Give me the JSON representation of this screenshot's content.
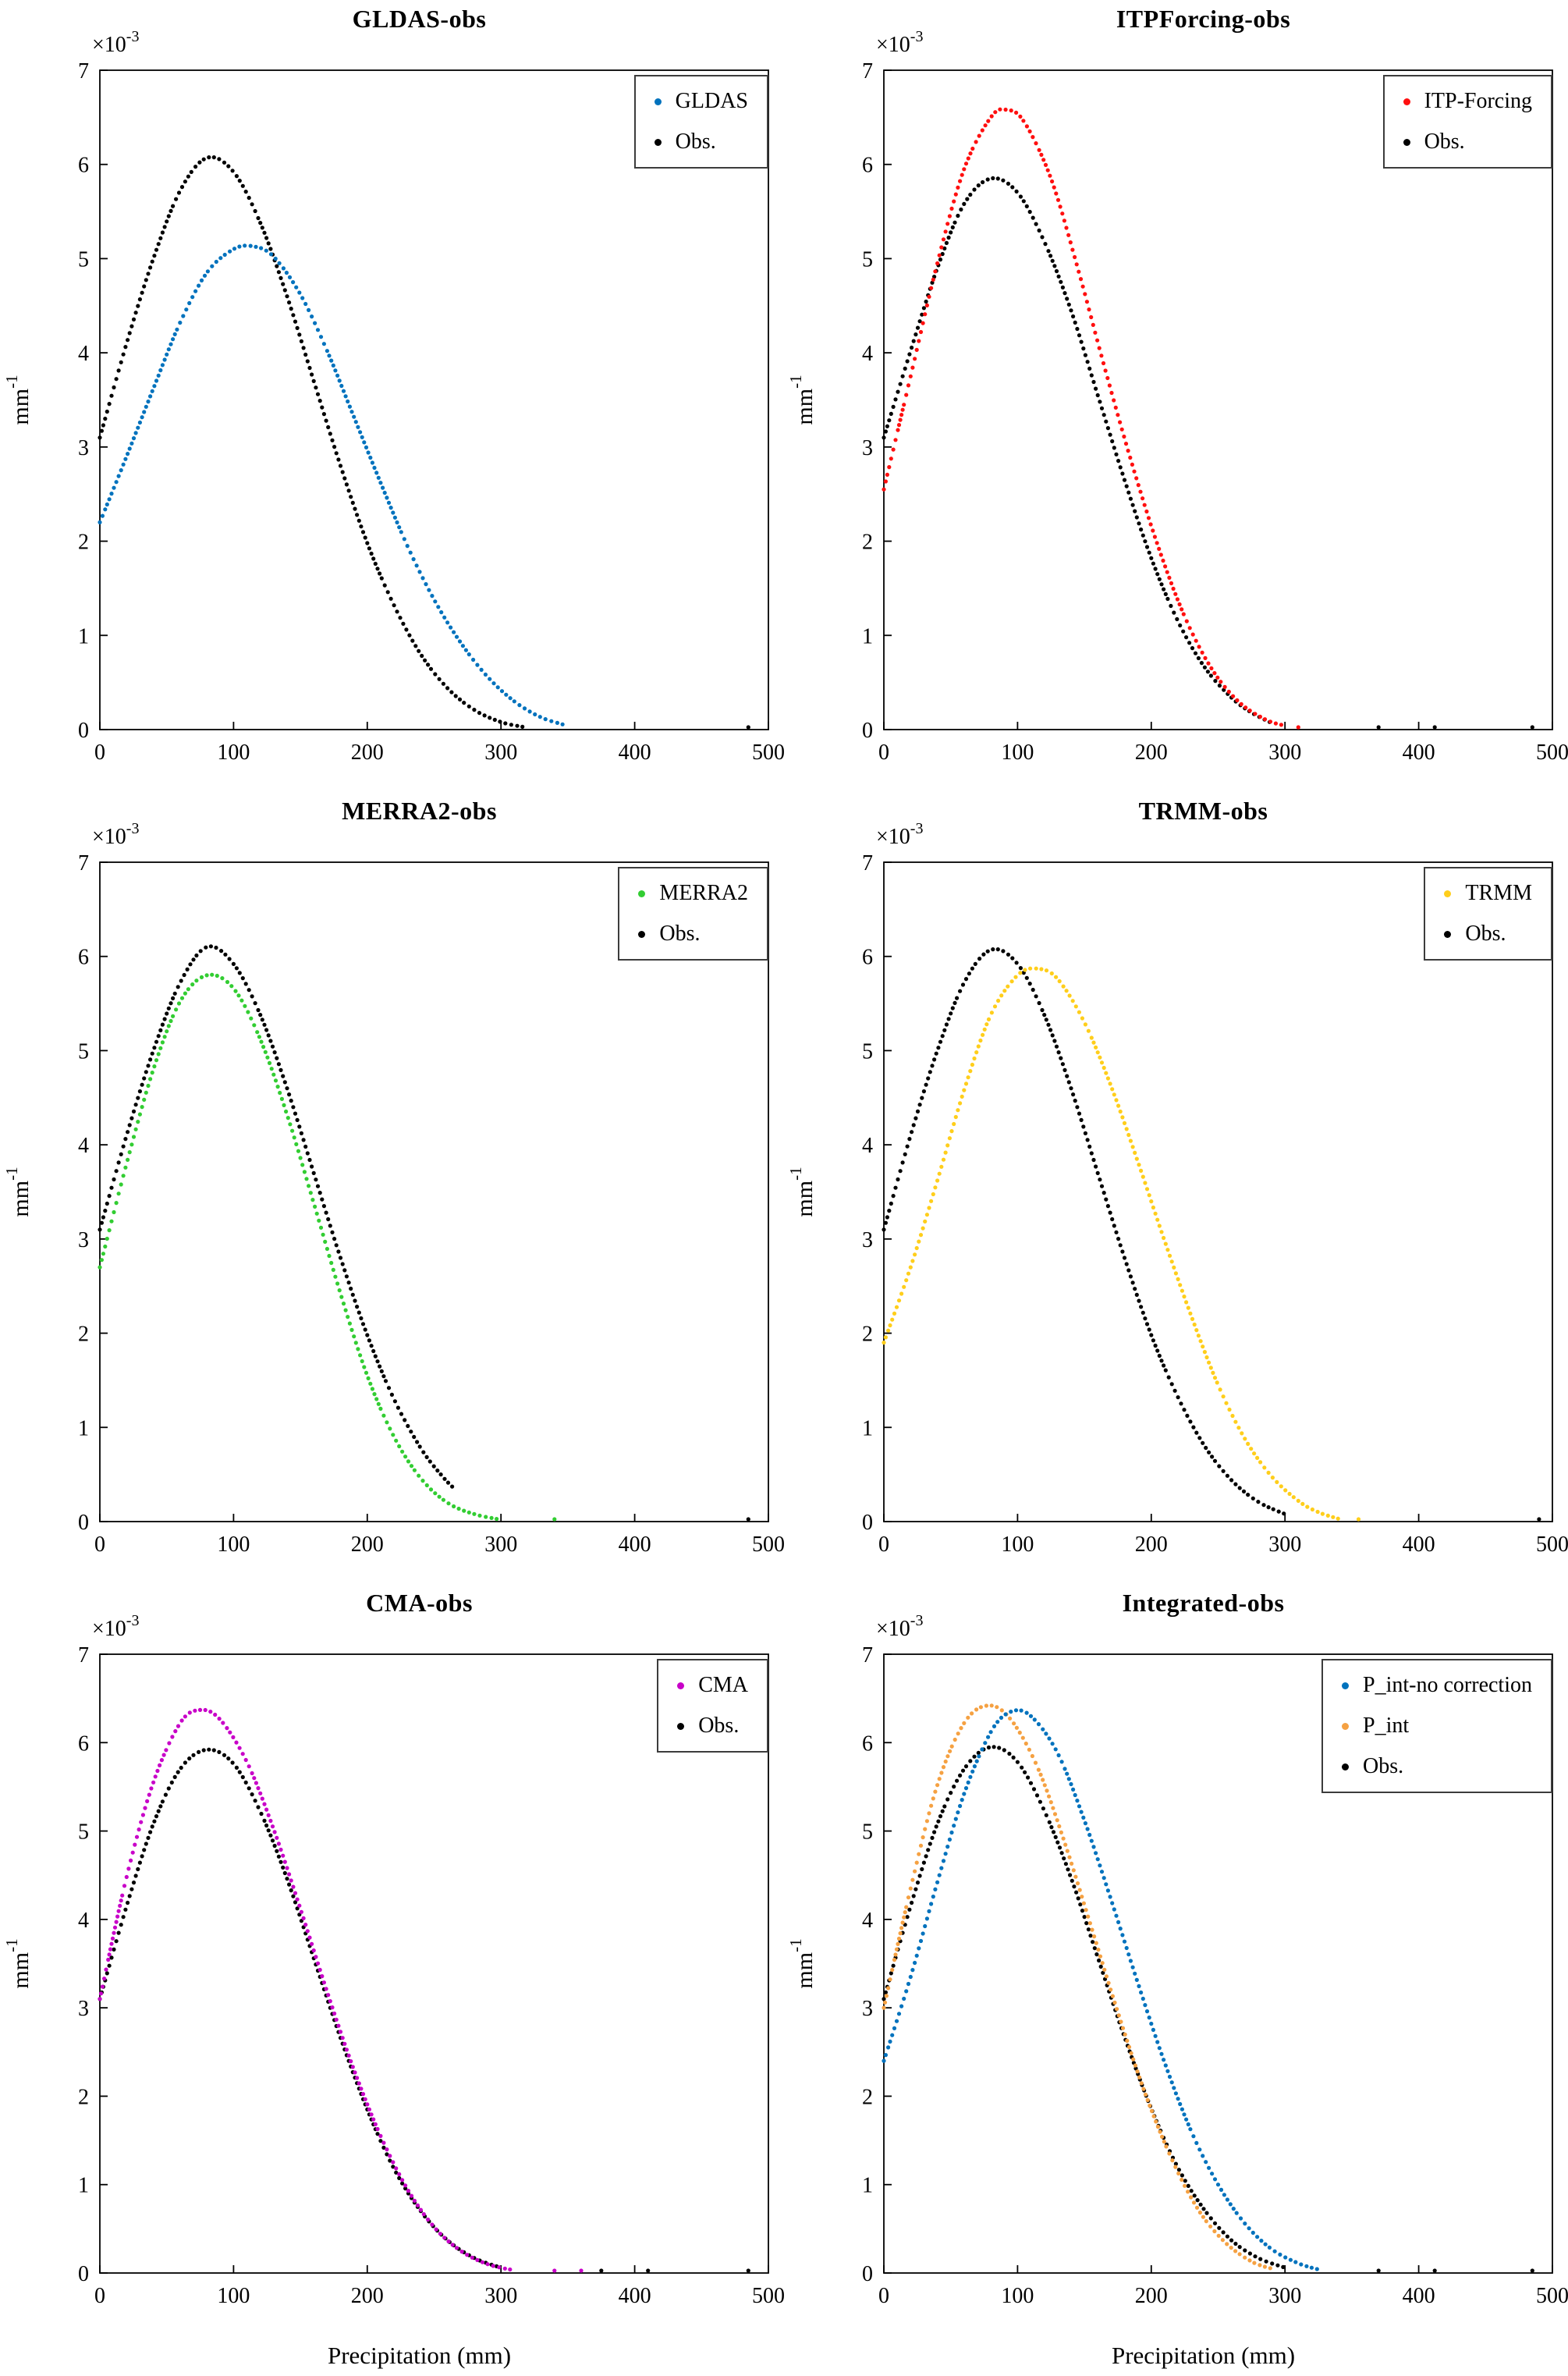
{
  "figure": {
    "y_axis": {
      "label_base": "mm",
      "label_exp": "-1",
      "multiplier_base": "×10",
      "multiplier_exp": "-3"
    },
    "xlabel": "Precipitation (mm)",
    "xlim": [
      0,
      500
    ],
    "ylim": [
      0,
      7
    ],
    "xticks": [
      0,
      100,
      200,
      300,
      400,
      500
    ],
    "yticks": [
      0,
      1,
      2,
      3,
      4,
      5,
      6,
      7
    ],
    "grid": false,
    "legend_position": "top-right"
  },
  "chart_data": [
    {
      "id": "gldas",
      "type": "scatter",
      "title": "GLDAS-obs",
      "xlabel": "",
      "series": [
        {
          "label": "GLDAS",
          "color": "#0072BD",
          "points": [
            [
              0,
              2.2
            ],
            [
              20,
              2.9
            ],
            [
              40,
              3.62
            ],
            [
              60,
              4.32
            ],
            [
              80,
              4.85
            ],
            [
              100,
              5.1
            ],
            [
              115,
              5.13
            ],
            [
              130,
              5.02
            ],
            [
              150,
              4.62
            ],
            [
              170,
              4.02
            ],
            [
              190,
              3.32
            ],
            [
              210,
              2.62
            ],
            [
              230,
              1.95
            ],
            [
              250,
              1.38
            ],
            [
              270,
              0.92
            ],
            [
              290,
              0.56
            ],
            [
              310,
              0.3
            ],
            [
              330,
              0.13
            ],
            [
              350,
              0.04
            ]
          ],
          "axis_dots": []
        },
        {
          "label": "Obs.",
          "color": "#000000",
          "points": [
            [
              0,
              3.1
            ],
            [
              20,
              4.1
            ],
            [
              40,
              5.0
            ],
            [
              60,
              5.72
            ],
            [
              80,
              6.07
            ],
            [
              100,
              5.92
            ],
            [
              120,
              5.38
            ],
            [
              140,
              4.6
            ],
            [
              160,
              3.7
            ],
            [
              180,
              2.8
            ],
            [
              200,
              1.98
            ],
            [
              220,
              1.32
            ],
            [
              240,
              0.8
            ],
            [
              260,
              0.44
            ],
            [
              280,
              0.21
            ],
            [
              300,
              0.08
            ],
            [
              320,
              0.02
            ]
          ],
          "axis_dots": [
            485
          ]
        }
      ]
    },
    {
      "id": "itpforcing",
      "type": "scatter",
      "title": "ITPForcing-obs",
      "xlabel": "",
      "series": [
        {
          "label": "ITP-Forcing",
          "color": "#FF0F0F",
          "points": [
            [
              0,
              2.55
            ],
            [
              20,
              3.75
            ],
            [
              40,
              4.95
            ],
            [
              60,
              5.95
            ],
            [
              80,
              6.5
            ],
            [
              92,
              6.58
            ],
            [
              105,
              6.45
            ],
            [
              125,
              5.85
            ],
            [
              145,
              4.9
            ],
            [
              165,
              3.85
            ],
            [
              185,
              2.85
            ],
            [
              205,
              1.95
            ],
            [
              225,
              1.2
            ],
            [
              245,
              0.65
            ],
            [
              265,
              0.3
            ],
            [
              285,
              0.11
            ],
            [
              300,
              0.04
            ]
          ],
          "axis_dots": [
            310
          ]
        },
        {
          "label": "Obs.",
          "color": "#000000",
          "points": [
            [
              0,
              3.1
            ],
            [
              20,
              4.02
            ],
            [
              40,
              4.9
            ],
            [
              60,
              5.58
            ],
            [
              80,
              5.85
            ],
            [
              100,
              5.7
            ],
            [
              120,
              5.18
            ],
            [
              140,
              4.45
            ],
            [
              160,
              3.55
            ],
            [
              180,
              2.65
            ],
            [
              200,
              1.82
            ],
            [
              220,
              1.15
            ],
            [
              240,
              0.66
            ],
            [
              260,
              0.34
            ],
            [
              275,
              0.18
            ],
            [
              290,
              0.07
            ]
          ],
          "axis_dots": [
            370,
            412,
            485
          ]
        }
      ]
    },
    {
      "id": "merra2",
      "type": "scatter",
      "title": "MERRA2-obs",
      "xlabel": "",
      "series": [
        {
          "label": "MERRA2",
          "color": "#32CD32",
          "points": [
            [
              0,
              2.7
            ],
            [
              20,
              3.8
            ],
            [
              40,
              4.8
            ],
            [
              60,
              5.52
            ],
            [
              80,
              5.8
            ],
            [
              100,
              5.66
            ],
            [
              120,
              5.12
            ],
            [
              140,
              4.32
            ],
            [
              160,
              3.38
            ],
            [
              180,
              2.42
            ],
            [
              200,
              1.55
            ],
            [
              220,
              0.9
            ],
            [
              240,
              0.46
            ],
            [
              260,
              0.2
            ],
            [
              280,
              0.08
            ],
            [
              300,
              0.02
            ]
          ],
          "axis_dots": [
            340
          ]
        },
        {
          "label": "Obs.",
          "color": "#000000",
          "points": [
            [
              0,
              3.1
            ],
            [
              20,
              4.1
            ],
            [
              40,
              5.0
            ],
            [
              60,
              5.72
            ],
            [
              80,
              6.1
            ],
            [
              100,
              5.92
            ],
            [
              120,
              5.38
            ],
            [
              140,
              4.6
            ],
            [
              160,
              3.7
            ],
            [
              180,
              2.8
            ],
            [
              200,
              1.98
            ],
            [
              220,
              1.3
            ],
            [
              240,
              0.78
            ],
            [
              255,
              0.5
            ],
            [
              265,
              0.35
            ]
          ],
          "axis_dots": [
            485
          ]
        }
      ]
    },
    {
      "id": "trmm",
      "type": "scatter",
      "title": "TRMM-obs",
      "xlabel": "",
      "series": [
        {
          "label": "TRMM",
          "color": "#FFCE1B",
          "points": [
            [
              0,
              1.9
            ],
            [
              20,
              2.7
            ],
            [
              40,
              3.62
            ],
            [
              60,
              4.58
            ],
            [
              80,
              5.38
            ],
            [
              100,
              5.8
            ],
            [
              115,
              5.87
            ],
            [
              130,
              5.76
            ],
            [
              150,
              5.3
            ],
            [
              170,
              4.62
            ],
            [
              190,
              3.82
            ],
            [
              210,
              2.98
            ],
            [
              230,
              2.18
            ],
            [
              250,
              1.45
            ],
            [
              270,
              0.88
            ],
            [
              290,
              0.48
            ],
            [
              310,
              0.22
            ],
            [
              325,
              0.1
            ],
            [
              340,
              0.03
            ]
          ],
          "axis_dots": [
            355
          ]
        },
        {
          "label": "Obs.",
          "color": "#000000",
          "points": [
            [
              0,
              3.1
            ],
            [
              20,
              4.1
            ],
            [
              40,
              5.0
            ],
            [
              60,
              5.72
            ],
            [
              80,
              6.07
            ],
            [
              100,
              5.92
            ],
            [
              120,
              5.38
            ],
            [
              140,
              4.6
            ],
            [
              160,
              3.7
            ],
            [
              180,
              2.8
            ],
            [
              200,
              1.98
            ],
            [
              220,
              1.32
            ],
            [
              240,
              0.8
            ],
            [
              260,
              0.44
            ],
            [
              280,
              0.21
            ],
            [
              300,
              0.08
            ]
          ],
          "axis_dots": [
            490
          ]
        }
      ]
    },
    {
      "id": "cma",
      "type": "scatter",
      "title": "CMA-obs",
      "xlabel": "Precipitation (mm)",
      "series": [
        {
          "label": "CMA",
          "color": "#C800C8",
          "points": [
            [
              0,
              3.1
            ],
            [
              20,
              4.48
            ],
            [
              40,
              5.55
            ],
            [
              60,
              6.22
            ],
            [
              75,
              6.37
            ],
            [
              90,
              6.26
            ],
            [
              110,
              5.78
            ],
            [
              130,
              5.02
            ],
            [
              150,
              4.12
            ],
            [
              170,
              3.18
            ],
            [
              190,
              2.3
            ],
            [
              210,
              1.55
            ],
            [
              230,
              0.95
            ],
            [
              250,
              0.52
            ],
            [
              270,
              0.25
            ],
            [
              290,
              0.1
            ],
            [
              310,
              0.03
            ]
          ],
          "axis_dots": [
            340,
            360
          ]
        },
        {
          "label": "Obs.",
          "color": "#000000",
          "points": [
            [
              0,
              3.1
            ],
            [
              20,
              4.15
            ],
            [
              40,
              5.08
            ],
            [
              60,
              5.7
            ],
            [
              80,
              5.92
            ],
            [
              100,
              5.76
            ],
            [
              120,
              5.22
            ],
            [
              140,
              4.46
            ],
            [
              160,
              3.56
            ],
            [
              180,
              2.66
            ],
            [
              200,
              1.85
            ],
            [
              220,
              1.18
            ],
            [
              240,
              0.7
            ],
            [
              260,
              0.37
            ],
            [
              280,
              0.17
            ],
            [
              300,
              0.06
            ]
          ],
          "axis_dots": [
            375,
            410,
            485
          ]
        }
      ]
    },
    {
      "id": "integrated",
      "type": "scatter",
      "title": "Integrated-obs",
      "xlabel": "Precipitation (mm)",
      "series": [
        {
          "label": "P_int-no correction",
          "color": "#0072BD",
          "points": [
            [
              0,
              2.4
            ],
            [
              20,
              3.35
            ],
            [
              40,
              4.42
            ],
            [
              60,
              5.42
            ],
            [
              80,
              6.12
            ],
            [
              95,
              6.35
            ],
            [
              110,
              6.3
            ],
            [
              130,
              5.88
            ],
            [
              150,
              5.12
            ],
            [
              170,
              4.22
            ],
            [
              190,
              3.28
            ],
            [
              210,
              2.38
            ],
            [
              230,
              1.6
            ],
            [
              250,
              1.0
            ],
            [
              270,
              0.56
            ],
            [
              290,
              0.27
            ],
            [
              310,
              0.11
            ],
            [
              325,
              0.04
            ]
          ],
          "axis_dots": []
        },
        {
          "label": "P_int",
          "color": "#F5A142",
          "points": [
            [
              0,
              3.0
            ],
            [
              20,
              4.35
            ],
            [
              40,
              5.52
            ],
            [
              60,
              6.22
            ],
            [
              78,
              6.42
            ],
            [
              95,
              6.26
            ],
            [
              115,
              5.72
            ],
            [
              135,
              4.88
            ],
            [
              155,
              3.92
            ],
            [
              175,
              2.95
            ],
            [
              195,
              2.05
            ],
            [
              215,
              1.3
            ],
            [
              235,
              0.72
            ],
            [
              255,
              0.35
            ],
            [
              275,
              0.13
            ],
            [
              290,
              0.05
            ]
          ],
          "axis_dots": []
        },
        {
          "label": "Obs.",
          "color": "#000000",
          "points": [
            [
              0,
              3.1
            ],
            [
              20,
              4.15
            ],
            [
              40,
              5.08
            ],
            [
              60,
              5.7
            ],
            [
              80,
              5.95
            ],
            [
              100,
              5.78
            ],
            [
              120,
              5.23
            ],
            [
              140,
              4.47
            ],
            [
              160,
              3.57
            ],
            [
              180,
              2.67
            ],
            [
              200,
              1.86
            ],
            [
              220,
              1.19
            ],
            [
              240,
              0.71
            ],
            [
              260,
              0.37
            ],
            [
              280,
              0.17
            ],
            [
              300,
              0.06
            ]
          ],
          "axis_dots": [
            370,
            412,
            485
          ]
        }
      ]
    }
  ]
}
